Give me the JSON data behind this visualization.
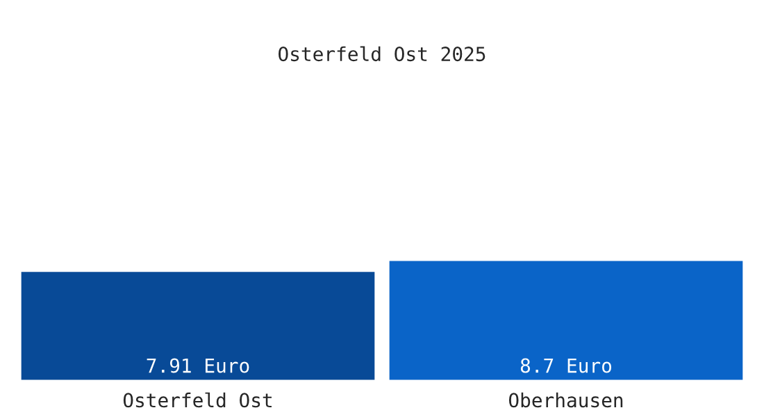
{
  "chart_data": {
    "type": "bar",
    "title": "Osterfeld Ost 2025",
    "categories": [
      "Osterfeld Ost",
      "Oberhausen"
    ],
    "values": [
      7.91,
      8.7
    ],
    "colors": [
      "#084a97",
      "#0a64c8"
    ],
    "value_labels": [
      "7.91 Euro",
      "8.7 Euro"
    ],
    "grid": false,
    "legend": false
  }
}
